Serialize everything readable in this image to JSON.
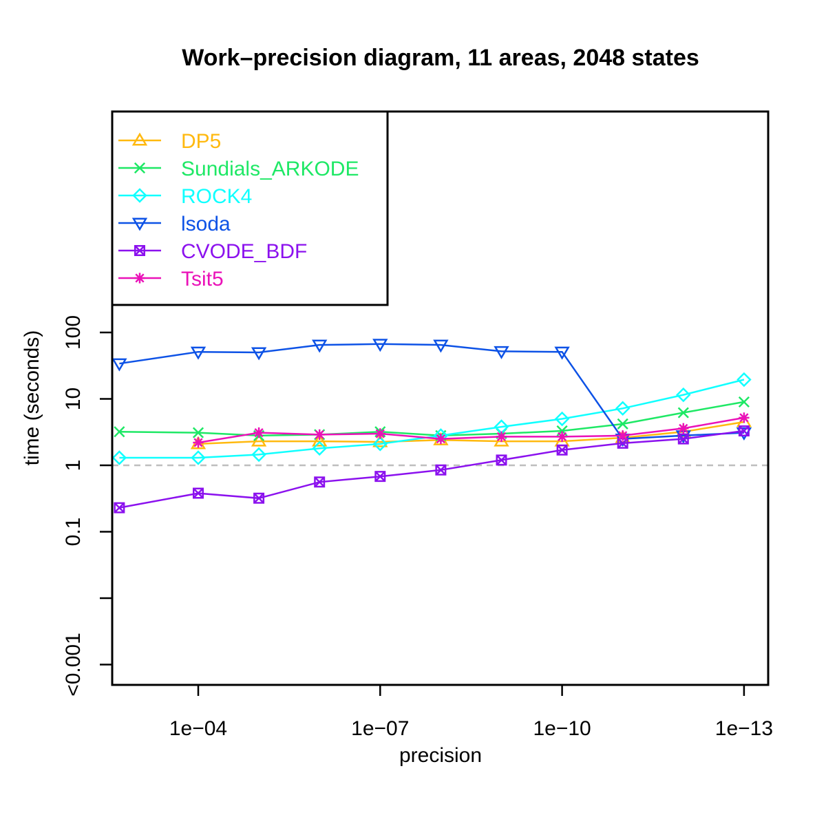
{
  "chart_data": {
    "type": "line",
    "title": "Work–precision diagram, 11 areas, 2048 states",
    "xlabel": "precision",
    "ylabel": "time (seconds)",
    "x_scale": "log, decreasing",
    "y_scale": "log",
    "x_ticks": [
      "1e−04",
      "1e−07",
      "1e−10",
      "1e−13"
    ],
    "x_tick_values": [
      0.0001,
      1e-07,
      1e-10,
      1e-13
    ],
    "y_ticks": [
      "100",
      "10",
      "1",
      "0.1",
      "",
      "<0.001"
    ],
    "y_tick_values": [
      100,
      10,
      1,
      0.1,
      0.01,
      0.001
    ],
    "x": [
      0.002,
      0.0001,
      1e-05,
      1e-06,
      1e-07,
      1e-08,
      1e-09,
      1e-10,
      1e-11,
      1e-12,
      1e-13
    ],
    "reference_line": {
      "y": 1,
      "style": "dashed",
      "color": "#bebebe"
    },
    "legend_position": "top-left",
    "series": [
      {
        "name": "DP5",
        "color": "#ffb90f",
        "marker": "triangle",
        "values": [
          null,
          2.1,
          2.3,
          2.3,
          2.25,
          2.4,
          2.3,
          2.3,
          2.6,
          3.2,
          4.5
        ]
      },
      {
        "name": "Sundials_ARKODE",
        "color": "#1ee865",
        "marker": "cross",
        "values": [
          3.2,
          3.1,
          2.8,
          2.9,
          3.2,
          2.8,
          3.0,
          3.3,
          4.2,
          6.2,
          9.0
        ]
      },
      {
        "name": "ROCK4",
        "color": "#10ffff",
        "marker": "diamond",
        "values": [
          1.3,
          1.3,
          1.45,
          1.8,
          2.1,
          2.8,
          3.8,
          5.0,
          7.2,
          11.5,
          19.5
        ]
      },
      {
        "name": "lsoda",
        "color": "#0d52e6",
        "marker": "triangle-down",
        "values": [
          34,
          51,
          50,
          65,
          67,
          65,
          52,
          51,
          2.5,
          2.8,
          3.1
        ]
      },
      {
        "name": "CVODE_BDF",
        "color": "#8b11ee",
        "marker": "boxed-x",
        "values": [
          0.23,
          0.38,
          0.32,
          0.56,
          0.68,
          0.85,
          1.2,
          1.7,
          2.15,
          2.5,
          3.3
        ]
      },
      {
        "name": "Tsit5",
        "color": "#ea12b8",
        "marker": "asterisk",
        "values": [
          null,
          2.2,
          3.1,
          2.9,
          3.0,
          2.5,
          2.7,
          2.7,
          2.8,
          3.6,
          5.2
        ]
      }
    ]
  }
}
